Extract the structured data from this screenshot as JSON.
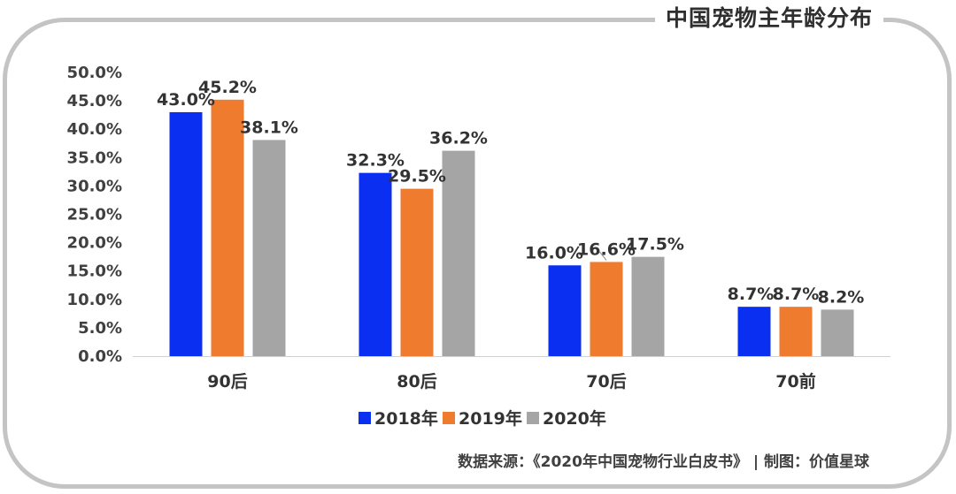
{
  "title": "中国宠物主年龄分布",
  "source_text": "数据来源：《2020年中国宠物行业白皮书》 | 制图：价值星球",
  "chart_data": {
    "type": "bar",
    "categories": [
      "90后",
      "80后",
      "70后",
      "70前"
    ],
    "series": [
      {
        "name": "2018年",
        "color": "#0a2ff0",
        "values": [
          43.0,
          32.3,
          16.0,
          8.7
        ],
        "labels": [
          "43.0%",
          "32.3%",
          "16.0%",
          "8.7%"
        ]
      },
      {
        "name": "2019年",
        "color": "#ef7b2e",
        "values": [
          45.2,
          29.5,
          16.6,
          8.7
        ],
        "labels": [
          "45.2%",
          "29.5%",
          "16.6%",
          "8.7%"
        ]
      },
      {
        "name": "2020年",
        "color": "#a5a5a5",
        "values": [
          38.1,
          36.2,
          17.5,
          8.2
        ],
        "labels": [
          "38.1%",
          "36.2%",
          "17.5%",
          "8.2%"
        ]
      }
    ],
    "ylim": [
      0,
      50
    ],
    "yticks": [
      0,
      5,
      10,
      15,
      20,
      25,
      30,
      35,
      40,
      45,
      50
    ],
    "ytick_labels": [
      "0.0%",
      "5.0%",
      "10.0%",
      "15.0%",
      "20.0%",
      "25.0%",
      "30.0%",
      "35.0%",
      "40.0%",
      "45.0%",
      "50.0%"
    ],
    "legend_position": "bottom",
    "grid": false
  }
}
